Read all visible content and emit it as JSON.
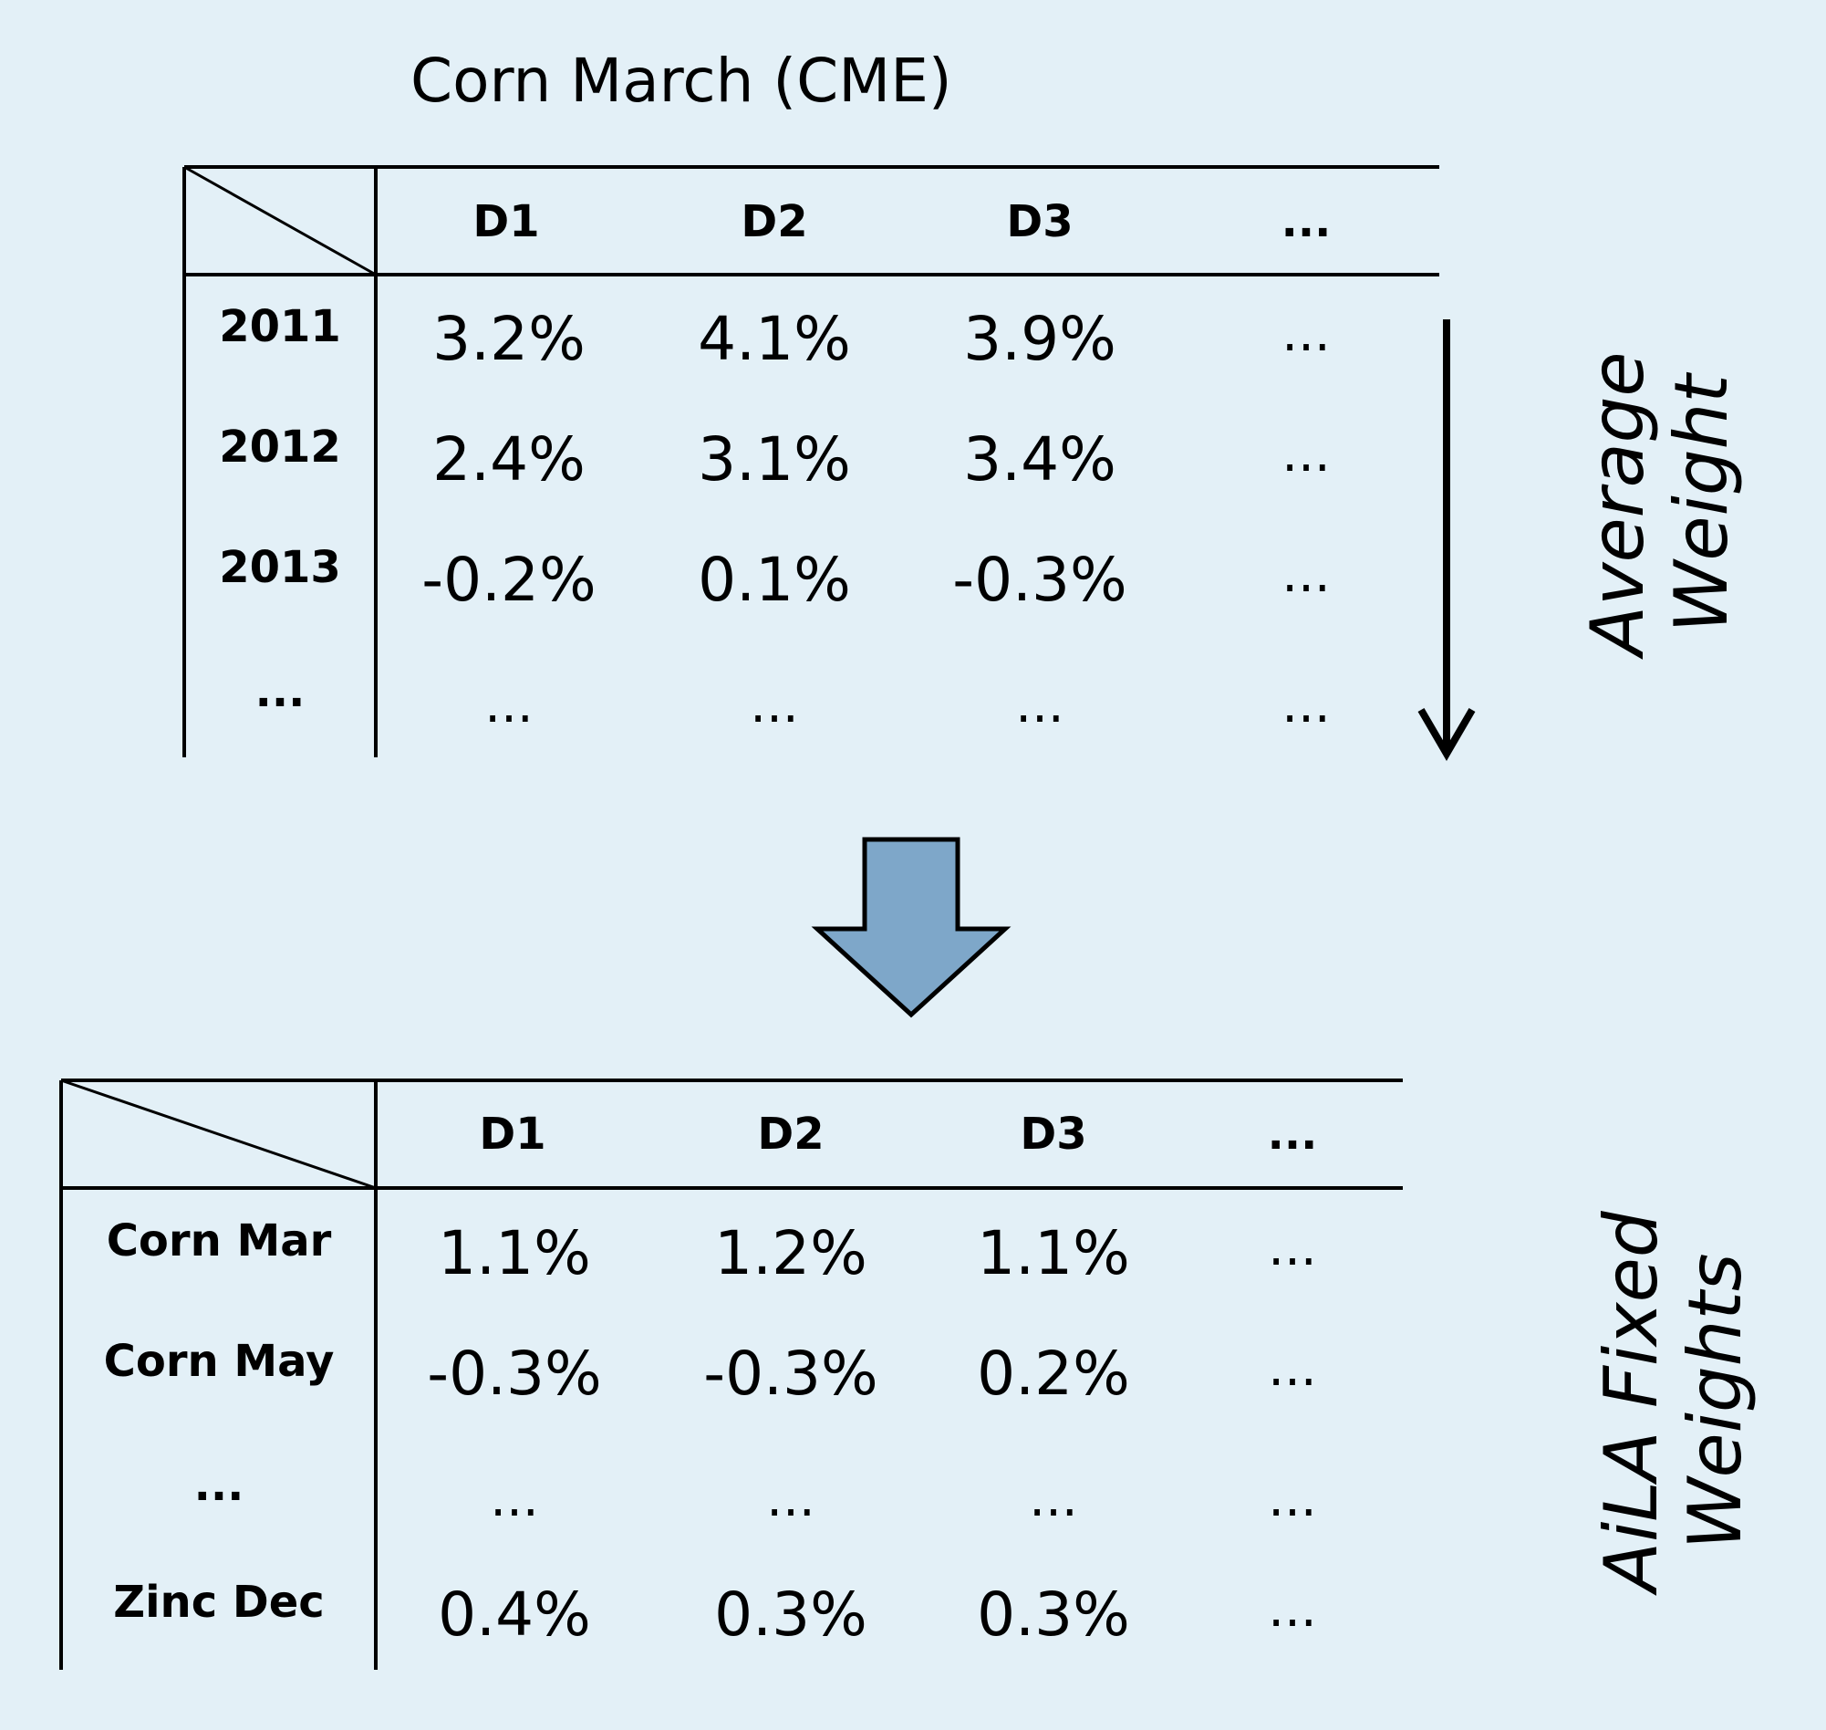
{
  "title": "Corn March (CME)",
  "top_table": {
    "columns": [
      "D1",
      "D2",
      "D3",
      "..."
    ],
    "rows": [
      {
        "label": "2011",
        "values": [
          "3.2%",
          "4.1%",
          "3.9%",
          "..."
        ]
      },
      {
        "label": "2012",
        "values": [
          "2.4%",
          "3.1%",
          "3.4%",
          "..."
        ]
      },
      {
        "label": "2013",
        "values": [
          "-0.2%",
          "0.1%",
          "-0.3%",
          "..."
        ]
      },
      {
        "label": "...",
        "values": [
          "...",
          "...",
          "...",
          "..."
        ]
      }
    ]
  },
  "top_side_label": [
    "Average",
    "Weight"
  ],
  "bottom_table": {
    "columns": [
      "D1",
      "D2",
      "D3",
      "..."
    ],
    "rows": [
      {
        "label": "Corn Mar",
        "values": [
          "1.1%",
          "1.2%",
          "1.1%",
          "..."
        ]
      },
      {
        "label": "Corn May",
        "values": [
          "-0.3%",
          "-0.3%",
          "0.2%",
          "..."
        ]
      },
      {
        "label": "...",
        "values": [
          "...",
          "...",
          "...",
          "..."
        ]
      },
      {
        "label": "Zinc Dec",
        "values": [
          "0.4%",
          "0.3%",
          "0.3%",
          "..."
        ]
      }
    ]
  },
  "bottom_side_label": [
    "AiLA Fixed",
    "Weights"
  ],
  "colors": {
    "background": "#e3f0f7",
    "block_arrow_fill": "#7ea7c9"
  }
}
